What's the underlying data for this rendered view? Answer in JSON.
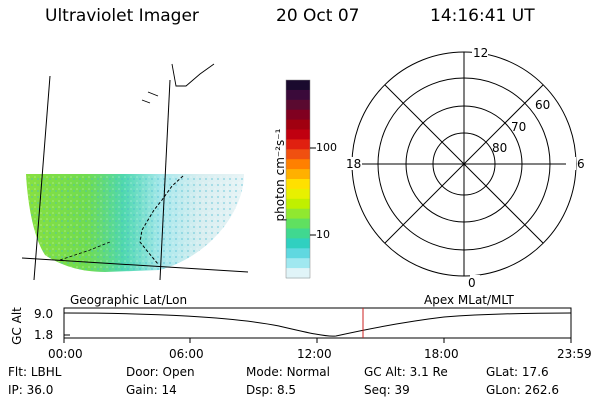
{
  "header": {
    "instrument": "Ultraviolet Imager",
    "date": "20 Oct 07",
    "time": "14:16:41 UT"
  },
  "colorbar": {
    "unit_label": "photon cm⁻²s⁻¹",
    "ticks": [
      "100",
      "10"
    ],
    "colors_top_to_bottom": [
      "#1a0a2e",
      "#3a0a3a",
      "#5a0a30",
      "#800020",
      "#a00010",
      "#c00010",
      "#e02010",
      "#f05010",
      "#ff8000",
      "#ffb000",
      "#ffe000",
      "#e8f000",
      "#c0f000",
      "#90e830",
      "#60e060",
      "#40d890",
      "#30d0c0",
      "#60d8e0",
      "#a0e8f0",
      "#e0f4f8"
    ]
  },
  "map": {
    "left_label": "Geographic Lat/Lon",
    "right_label": "Apex MLat/MLT"
  },
  "polar": {
    "mlt_labels": {
      "top": "12",
      "right": "6",
      "bottom": "0",
      "left": "18"
    },
    "lat_labels": [
      "60",
      "70",
      "80"
    ]
  },
  "altitude_plot": {
    "ylabel": "GC Alt",
    "yticks": [
      "9.0",
      "1.8"
    ],
    "xticks": [
      "00:00",
      "06:00",
      "12:00",
      "18:00",
      "23:59"
    ],
    "marker_time": "14:16:41",
    "marker_color": "#cc2020"
  },
  "info": {
    "row1": [
      {
        "label": "Flt:",
        "value": "LBHL"
      },
      {
        "label": "Door:",
        "value": "Open"
      },
      {
        "label": "Mode:",
        "value": "Normal"
      },
      {
        "label": "GC Alt:",
        "value": "3.1 Re"
      },
      {
        "label": "GLat:",
        "value": "17.6"
      }
    ],
    "row2": [
      {
        "label": "IP:",
        "value": "36.0"
      },
      {
        "label": "Gain:",
        "value": "14"
      },
      {
        "label": "Dsp:",
        "value": "8.5"
      },
      {
        "label": "Seq:",
        "value": "39"
      },
      {
        "label": "GLon:",
        "value": "262.6"
      }
    ]
  }
}
